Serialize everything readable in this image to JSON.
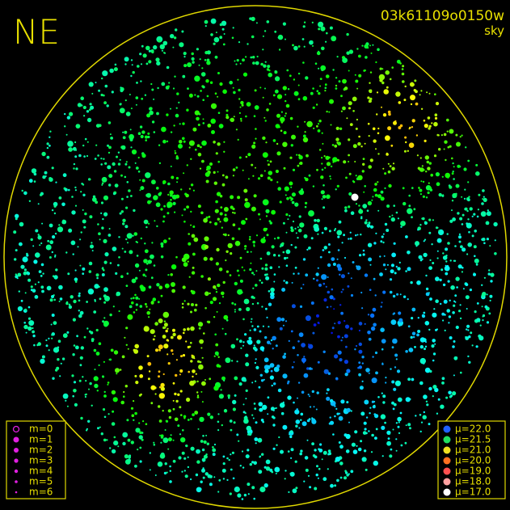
{
  "header": {
    "direction": "NE",
    "image_id": "03k61109o0150w",
    "mode": "sky"
  },
  "magnitude_legend": [
    "m=0",
    "m=1",
    "m=2",
    "m=3",
    "m=4",
    "m=5",
    "m=6"
  ],
  "mu_legend": [
    "μ=22.0",
    "μ=21.5",
    "μ=21.0",
    "μ=20.0",
    "μ=19.0",
    "μ=18.0",
    "μ=17.0"
  ]
}
